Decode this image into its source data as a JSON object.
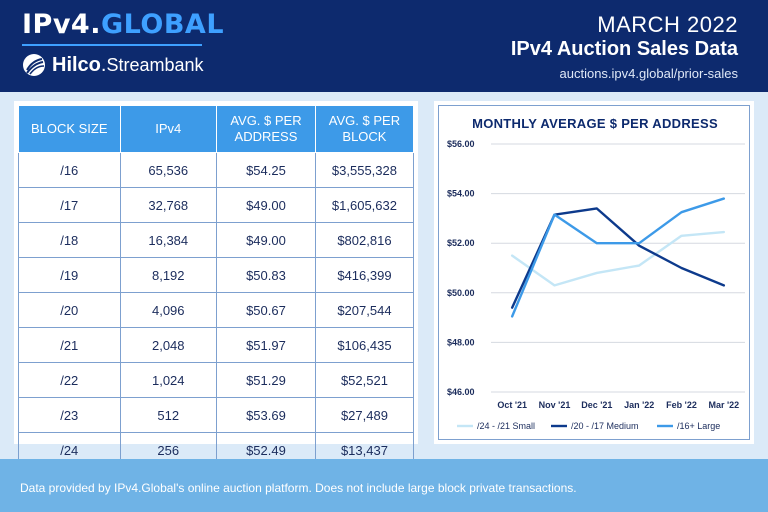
{
  "header": {
    "logo_text": "IPv4.",
    "logo_accent": "GLOBAL",
    "sub_brand": "Hilco",
    "sub_sep": ".",
    "sub_brand2": "Streambank",
    "month": "MARCH 2022",
    "title": "IPv4 Auction Sales Data",
    "url": "auctions.ipv4.global/prior-sales"
  },
  "table": {
    "headers": [
      "BLOCK SIZE",
      "IPv4",
      "AVG. $ PER ADDRESS",
      "AVG. $ PER BLOCK"
    ],
    "rows": [
      [
        "/16",
        "65,536",
        "$54.25",
        "$3,555,328"
      ],
      [
        "/17",
        "32,768",
        "$49.00",
        "$1,605,632"
      ],
      [
        "/18",
        "16,384",
        "$49.00",
        "$802,816"
      ],
      [
        "/19",
        "8,192",
        "$50.83",
        "$416,399"
      ],
      [
        "/20",
        "4,096",
        "$50.67",
        "$207,544"
      ],
      [
        "/21",
        "2,048",
        "$51.97",
        "$106,435"
      ],
      [
        "/22",
        "1,024",
        "$51.29",
        "$52,521"
      ],
      [
        "/23",
        "512",
        "$53.69",
        "$27,489"
      ],
      [
        "/24",
        "256",
        "$52.49",
        "$13,437"
      ]
    ]
  },
  "chart_data": {
    "type": "line",
    "title": "MONTHLY AVERAGE $ PER ADDRESS",
    "categories": [
      "Oct '21",
      "Nov '21",
      "Dec '21",
      "Jan '22",
      "Feb '22",
      "Mar '22"
    ],
    "y_ticks": [
      "$46.00",
      "$48.00",
      "$50.00",
      "$52.00",
      "$54.00",
      "$56.00"
    ],
    "ylim": [
      46,
      56
    ],
    "grid": true,
    "legend_position": "bottom",
    "series": [
      {
        "name": "/24 - /21 Small",
        "color": "#c4e6f6",
        "values": [
          51.5,
          50.3,
          50.8,
          51.1,
          52.3,
          52.45
        ]
      },
      {
        "name": "/20 - /17 Medium",
        "color": "#0d3a8c",
        "values": [
          49.4,
          53.15,
          53.4,
          51.9,
          51.0,
          50.3
        ]
      },
      {
        "name": "/16+ Large",
        "color": "#3d9ae8",
        "values": [
          49.05,
          53.15,
          52.0,
          52.0,
          53.25,
          53.8
        ]
      }
    ]
  },
  "footer": {
    "text": "Data provided by IPv4.Global's online auction platform. Does not include large block private transactions."
  },
  "colors": {
    "header_bg": "#0d2a6e",
    "accent": "#3ea0ff",
    "table_header": "#3d9ae8",
    "page_bg": "#dbeaf8",
    "footer_bg": "#6fb3e6"
  }
}
